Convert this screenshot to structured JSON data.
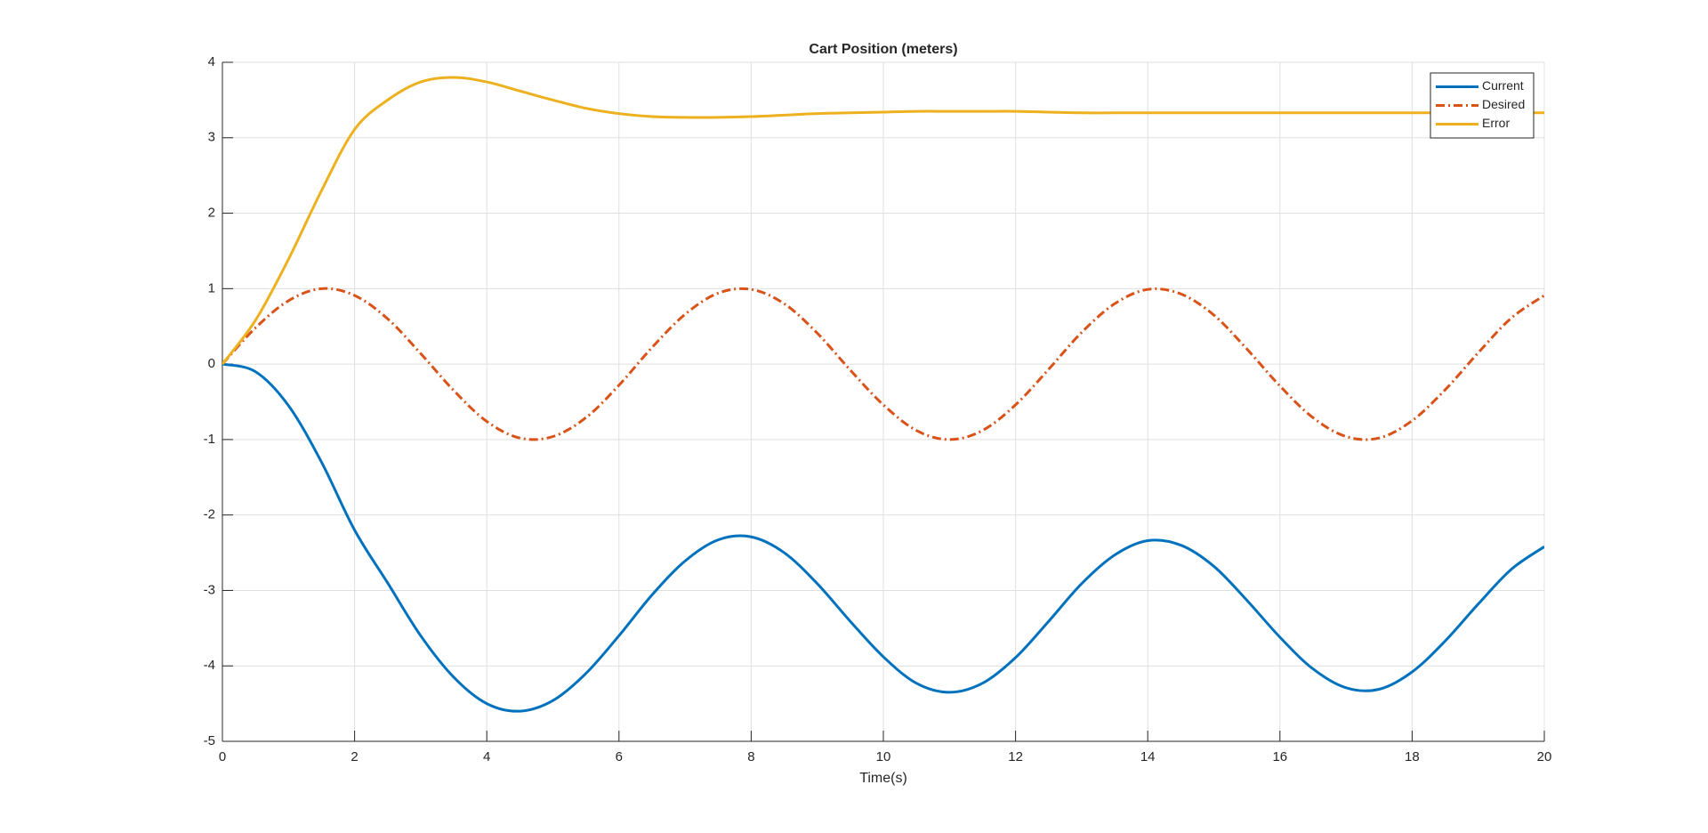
{
  "chart_data": {
    "type": "line",
    "title": "Cart Position (meters)",
    "x_label": "Time(s)",
    "x": [
      0,
      0.5,
      1,
      1.5,
      2,
      2.5,
      3,
      3.5,
      4,
      4.5,
      5,
      5.5,
      6,
      6.5,
      7,
      7.5,
      8,
      8.5,
      9,
      9.5,
      10,
      10.5,
      11,
      11.5,
      12,
      12.5,
      13,
      13.5,
      14,
      14.5,
      15,
      15.5,
      16,
      16.5,
      17,
      17.5,
      18,
      18.5,
      19,
      19.5,
      20
    ],
    "series": [
      {
        "name": "Current",
        "color": "#0072bd",
        "style": "solid",
        "values": [
          0,
          -0.1,
          -0.55,
          -1.3,
          -2.2,
          -2.9,
          -3.6,
          -4.15,
          -4.5,
          -4.6,
          -4.46,
          -4.1,
          -3.6,
          -3.06,
          -2.61,
          -2.33,
          -2.29,
          -2.5,
          -2.91,
          -3.41,
          -3.88,
          -4.23,
          -4.35,
          -4.23,
          -3.89,
          -3.41,
          -2.91,
          -2.53,
          -2.34,
          -2.4,
          -2.68,
          -3.13,
          -3.62,
          -4.04,
          -4.29,
          -4.31,
          -4.08,
          -3.67,
          -3.18,
          -2.72,
          -2.42
        ]
      },
      {
        "name": "Desired",
        "color": "#d95319",
        "style": "dashdot",
        "values": [
          0,
          0.48,
          0.84,
          1.0,
          0.91,
          0.6,
          0.14,
          -0.35,
          -0.76,
          -0.98,
          -0.96,
          -0.71,
          -0.28,
          0.22,
          0.66,
          0.94,
          0.99,
          0.8,
          0.41,
          -0.08,
          -0.54,
          -0.88,
          -1.0,
          -0.88,
          -0.54,
          -0.07,
          0.42,
          0.8,
          0.99,
          0.93,
          0.65,
          0.2,
          -0.29,
          -0.71,
          -0.96,
          -0.98,
          -0.75,
          -0.34,
          0.15,
          0.61,
          0.91
        ]
      },
      {
        "name": "Error",
        "color": "#edb120",
        "style": "solid",
        "values": [
          0,
          0.58,
          1.39,
          2.3,
          3.11,
          3.5,
          3.74,
          3.8,
          3.74,
          3.62,
          3.5,
          3.39,
          3.32,
          3.28,
          3.27,
          3.27,
          3.28,
          3.3,
          3.32,
          3.33,
          3.34,
          3.35,
          3.35,
          3.35,
          3.35,
          3.34,
          3.33,
          3.33,
          3.33,
          3.33,
          3.33,
          3.33,
          3.33,
          3.33,
          3.33,
          3.33,
          3.33,
          3.33,
          3.33,
          3.33,
          3.33
        ]
      }
    ],
    "xlim": [
      0,
      20
    ],
    "xticks": [
      0,
      2,
      4,
      6,
      8,
      10,
      12,
      14,
      16,
      18,
      20
    ],
    "ylim": [
      -5,
      4
    ],
    "yticks": [
      -5,
      -4,
      -3,
      -2,
      -1,
      0,
      1,
      2,
      3,
      4
    ],
    "grid": true,
    "legend": "northeast"
  }
}
